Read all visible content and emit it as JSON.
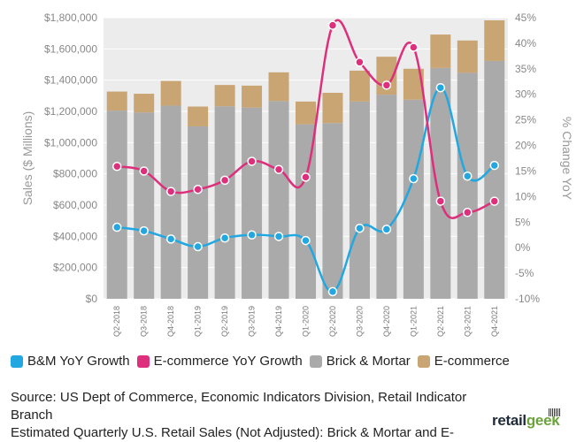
{
  "chart_data": {
    "type": "bar",
    "stacked": true,
    "categories": [
      "Q2-2018",
      "Q3-2018",
      "Q4-2018",
      "Q1-2019",
      "Q2-2019",
      "Q3-2019",
      "Q4-2019",
      "Q1-2020",
      "Q2-2020",
      "Q3-2020",
      "Q4-2020",
      "Q1-2021",
      "Q2-2021",
      "Q3-2021",
      "Q4-2021"
    ],
    "bar_series": [
      {
        "name": "Brick & Mortar",
        "color": "#aaaaaa",
        "values": [
          1205000,
          1193000,
          1237000,
          1104000,
          1233000,
          1224000,
          1266000,
          1117000,
          1125000,
          1263000,
          1307000,
          1275000,
          1478000,
          1447000,
          1523000
        ]
      },
      {
        "name": "E-commerce",
        "color": "#c9a574",
        "values": [
          122000,
          120000,
          158000,
          127000,
          136000,
          141000,
          184000,
          146000,
          194000,
          198000,
          243000,
          198000,
          214000,
          207000,
          260000
        ]
      }
    ],
    "line_series": [
      {
        "name": "B&M YoY Growth",
        "color": "#22a7e0",
        "values": [
          4.0,
          3.3,
          1.7,
          0.2,
          1.9,
          2.5,
          2.2,
          1.4,
          -8.6,
          3.8,
          3.6,
          13.5,
          31.3,
          14.0,
          16.1
        ]
      },
      {
        "name": "E-commerce YoY Growth",
        "color": "#dd2f7b",
        "values": [
          15.9,
          15.0,
          11.0,
          11.4,
          13.2,
          16.9,
          15.3,
          13.8,
          43.5,
          36.3,
          31.8,
          39.2,
          9.1,
          6.9,
          9.1
        ]
      }
    ],
    "y_left": {
      "label": "Sales ($ Millions)",
      "min": 0,
      "max": 1800000,
      "step": 200000,
      "ticks": [
        "$0",
        "$200,000",
        "$400,000",
        "$600,000",
        "$800,000",
        "$1,000,000",
        "$1,200,000",
        "$1,400,000",
        "$1,600,000",
        "$1,800,000"
      ]
    },
    "y_right": {
      "label": "% Change YoY",
      "min": -10,
      "max": 45,
      "step": 5,
      "ticks": [
        "-10%",
        "-5%",
        "0%",
        "5%",
        "10%",
        "15%",
        "20%",
        "25%",
        "30%",
        "35%",
        "40%",
        "45%"
      ]
    },
    "grid": true
  },
  "legend": [
    {
      "label": "B&M YoY Growth",
      "color": "#22a7e0"
    },
    {
      "label": "E-commerce YoY Growth",
      "color": "#dd2f7b"
    },
    {
      "label": "Brick & Mortar",
      "color": "#aaaaaa"
    },
    {
      "label": "E-commerce",
      "color": "#c9a574"
    }
  ],
  "source": {
    "line1": "Source: US Dept of Commerce, Economic Indicators Division, Retail Indicator Branch",
    "line2": "Estimated Quarterly U.S. Retail Sales (Not Adjusted): Brick & Mortar and E-"
  },
  "logo": {
    "part1": "retail",
    "part2": "geek"
  }
}
